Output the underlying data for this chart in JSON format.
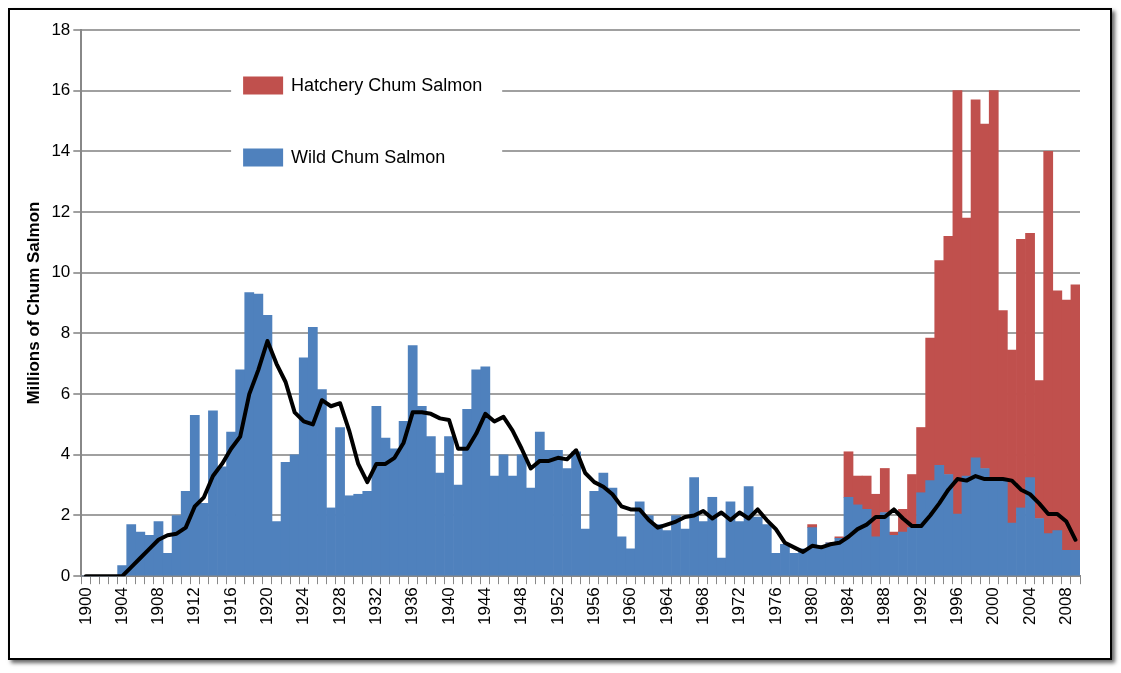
{
  "chart_data": {
    "type": "bar",
    "stacked": true,
    "ylabel": "Millions of Chum Salmon",
    "categories": [
      "1900",
      null,
      null,
      null,
      "1904",
      null,
      null,
      null,
      "1908",
      null,
      null,
      null,
      "1912",
      null,
      null,
      null,
      "1916",
      null,
      null,
      null,
      "1920",
      null,
      null,
      null,
      "1924",
      null,
      null,
      null,
      "1928",
      null,
      null,
      null,
      "1932",
      null,
      null,
      null,
      "1936",
      null,
      null,
      null,
      "1940",
      null,
      null,
      null,
      "1944",
      null,
      null,
      null,
      "1948",
      null,
      null,
      null,
      "1952",
      null,
      null,
      null,
      "1956",
      null,
      null,
      null,
      "1960",
      null,
      null,
      null,
      "1964",
      null,
      null,
      null,
      "1968",
      null,
      null,
      null,
      "1972",
      null,
      null,
      null,
      "1976",
      null,
      null,
      null,
      "1980",
      null,
      null,
      null,
      "1984",
      null,
      null,
      null,
      "1988",
      null,
      null,
      null,
      "1992",
      null,
      null,
      null,
      "1996",
      null,
      null,
      null,
      "2000",
      null,
      null,
      null,
      "2004",
      null,
      null,
      null,
      "2008",
      null
    ],
    "ylim": [
      0,
      18
    ],
    "yticks": [
      0,
      2,
      4,
      6,
      8,
      10,
      12,
      14,
      16,
      18
    ],
    "grid": "y",
    "legend": "top left",
    "series": [
      {
        "name": "Wild Chum Salmon",
        "color": "#4f81bd",
        "values": [
          0,
          0,
          0,
          0,
          0.35,
          1.7,
          1.45,
          1.35,
          1.8,
          0.75,
          2.0,
          2.8,
          5.3,
          2.4,
          5.45,
          3.6,
          4.75,
          6.8,
          9.35,
          9.3,
          8.6,
          1.8,
          3.75,
          4.0,
          7.2,
          8.2,
          6.15,
          2.25,
          4.9,
          2.65,
          2.7,
          2.8,
          5.6,
          4.55,
          4.2,
          5.1,
          7.6,
          5.6,
          4.6,
          3.4,
          4.6,
          3.0,
          5.5,
          6.8,
          6.9,
          3.3,
          4.0,
          3.3,
          4.0,
          2.9,
          4.75,
          4.15,
          4.15,
          3.55,
          4.1,
          1.55,
          2.8,
          3.4,
          2.9,
          1.3,
          0.9,
          2.45,
          2.0,
          1.7,
          1.5,
          2.0,
          1.55,
          3.25,
          1.8,
          2.6,
          0.6,
          2.45,
          1.8,
          2.95,
          1.95,
          1.7,
          0.75,
          1.05,
          0.75,
          0.9,
          1.6,
          1.0,
          1.1,
          1.25,
          2.6,
          2.35,
          2.2,
          1.3,
          2.1,
          1.35,
          1.45,
          1.6,
          2.75,
          3.15,
          3.65,
          3.35,
          2.05,
          3.3,
          3.9,
          3.55,
          3.2,
          3.2,
          1.75,
          2.25,
          3.25,
          1.9,
          1.4,
          1.5,
          0.85,
          0.85
        ]
      },
      {
        "name": "Hatchery Chum Salmon",
        "color": "#c0504d",
        "values": [
          null,
          null,
          null,
          null,
          null,
          null,
          null,
          null,
          null,
          null,
          null,
          null,
          null,
          null,
          null,
          null,
          null,
          null,
          null,
          null,
          null,
          null,
          null,
          null,
          null,
          null,
          null,
          null,
          null,
          null,
          null,
          null,
          null,
          null,
          null,
          null,
          null,
          null,
          null,
          null,
          null,
          null,
          null,
          null,
          null,
          null,
          null,
          null,
          null,
          null,
          null,
          null,
          null,
          null,
          null,
          null,
          null,
          null,
          null,
          null,
          null,
          null,
          null,
          null,
          null,
          null,
          null,
          null,
          null,
          null,
          null,
          null,
          null,
          null,
          null,
          null,
          null,
          null,
          null,
          null,
          0.1,
          0,
          0,
          0.05,
          1.5,
          0.95,
          1.1,
          1.4,
          1.45,
          0.1,
          0.75,
          1.75,
          2.15,
          4.7,
          6.75,
          7.85,
          13.95,
          8.5,
          11.8,
          11.35,
          12.8,
          5.55,
          5.7,
          8.85,
          8.05,
          4.55,
          12.6,
          7.9,
          8.25,
          8.75
        ]
      },
      {
        "type": "line",
        "color": "#000000",
        "marker": "none",
        "values": [
          0,
          0,
          0,
          0,
          0,
          0.3,
          0.6,
          0.9,
          1.2,
          1.35,
          1.4,
          1.6,
          2.3,
          2.6,
          3.3,
          3.7,
          4.2,
          4.6,
          6.0,
          6.8,
          7.75,
          7.0,
          6.4,
          5.4,
          5.1,
          5.0,
          5.8,
          5.6,
          5.7,
          4.8,
          3.7,
          3.1,
          3.7,
          3.7,
          3.9,
          4.4,
          5.4,
          5.4,
          5.35,
          5.2,
          5.15,
          4.2,
          4.2,
          4.7,
          5.35,
          5.1,
          5.25,
          4.8,
          4.2,
          3.55,
          3.8,
          3.8,
          3.9,
          3.85,
          4.15,
          3.4,
          3.1,
          2.95,
          2.7,
          2.3,
          2.2,
          2.2,
          1.85,
          1.6,
          1.7,
          1.8,
          1.95,
          2.0,
          2.15,
          1.9,
          2.1,
          1.85,
          2.1,
          1.9,
          2.2,
          1.85,
          1.55,
          1.1,
          0.95,
          0.8,
          1.0,
          0.95,
          1.05,
          1.1,
          1.3,
          1.55,
          1.7,
          1.95,
          1.95,
          2.2,
          1.9,
          1.65,
          1.65,
          2.0,
          2.4,
          2.85,
          3.2,
          3.15,
          3.3,
          3.2,
          3.2,
          3.2,
          3.15,
          2.85,
          2.7,
          2.4,
          2.05,
          2.05,
          1.8,
          1.2
        ]
      }
    ]
  }
}
